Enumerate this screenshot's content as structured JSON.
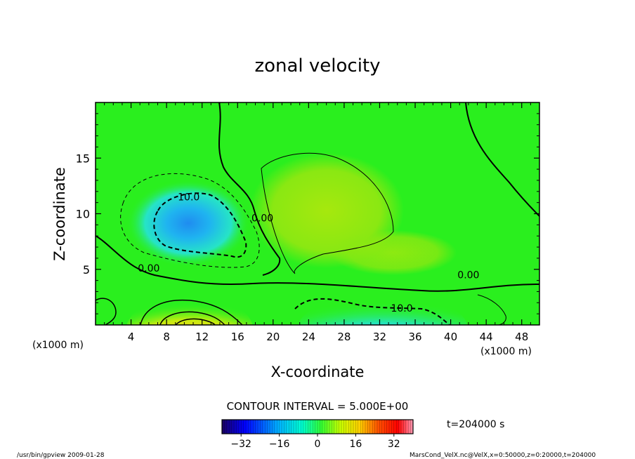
{
  "chart_data": {
    "type": "heatmap",
    "title": "zonal velocity",
    "xlabel": "X-coordinate",
    "ylabel": "Z-coordinate",
    "x_unit": "(x1000 m)",
    "x_unit_right": "(x1000 m)",
    "xlim": [
      0,
      50
    ],
    "ylim": [
      0,
      20
    ],
    "x_ticks": [
      4,
      8,
      12,
      16,
      20,
      24,
      28,
      32,
      36,
      40,
      44,
      48
    ],
    "y_ticks": [
      5,
      10,
      15
    ],
    "contour_labels": [
      {
        "text": "10.0",
        "x": 10.5,
        "z": 11.2
      },
      {
        "text": "0.00",
        "x": 18.8,
        "z": 9.3
      },
      {
        "text": "0.00",
        "x": 6.0,
        "z": 4.8
      },
      {
        "text": "10.0",
        "x": 34.5,
        "z": 1.2
      },
      {
        "text": "0.00",
        "x": 42.0,
        "z": 4.2
      }
    ],
    "colorbar": {
      "min": -40,
      "max": 40,
      "ticks": [
        -32,
        -16,
        0,
        16,
        32
      ],
      "colors": [
        "#1a0060",
        "#0000ff",
        "#00b4ff",
        "#00ffd0",
        "#33ff33",
        "#c8ff00",
        "#ffd000",
        "#ff5000",
        "#ff0000",
        "#ff9ab4"
      ]
    },
    "field_colors": {
      "background": "#2aef1e",
      "positive_region": "#8ae812",
      "strong_positive": "#f6c91c",
      "max_positive": "#f0401a",
      "negative_region": "#26e4c6",
      "strong_negative": "#1f9cf2",
      "max_negative": "#1450e0"
    },
    "contour_interval": "CONTOUR INTERVAL = 5.000E+00",
    "time": "t=204000 s"
  },
  "footer": {
    "left": "/usr/bin/gpview   2009-01-28",
    "right": "MarsCond_VelX.nc@VelX,x=0:50000,z=0:20000,t=204000"
  }
}
